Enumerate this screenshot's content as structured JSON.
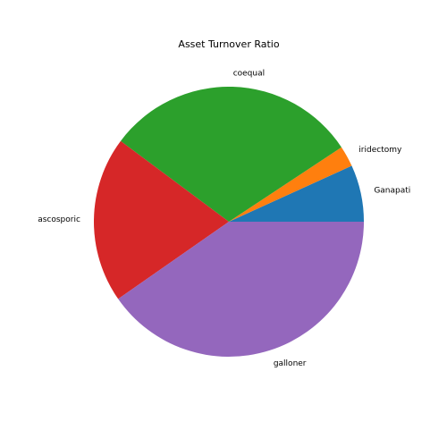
{
  "chart_data": {
    "type": "pie",
    "title": "Asset Turnover Ratio",
    "start_angle_deg": 0,
    "direction": "counterclockwise",
    "slices": [
      {
        "label": "Ganapati",
        "value": 6.8,
        "color": "#1f77b4"
      },
      {
        "label": "iridectomy",
        "value": 2.5,
        "color": "#ff7f0e"
      },
      {
        "label": "coequal",
        "value": 30.5,
        "color": "#2ca02c"
      },
      {
        "label": "ascosporic",
        "value": 19.9,
        "color": "#d62728"
      },
      {
        "label": "galloner",
        "value": 40.3,
        "color": "#9467bd"
      }
    ]
  }
}
